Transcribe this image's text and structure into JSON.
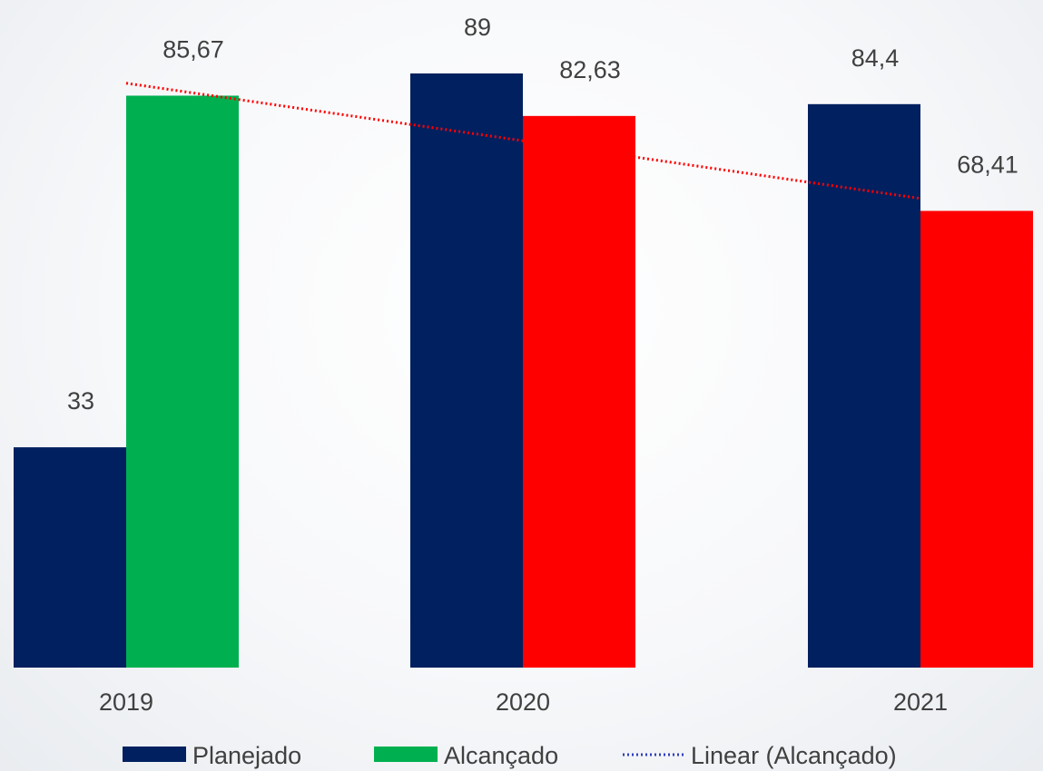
{
  "chart_data": {
    "type": "bar",
    "categories": [
      "2019",
      "2020",
      "2021"
    ],
    "series": [
      {
        "name": "Planejado",
        "values": [
          33,
          89,
          84.4
        ],
        "labels": [
          "33",
          "89",
          "84,4"
        ],
        "color": "#002060"
      },
      {
        "name": "Alcançado",
        "values": [
          85.67,
          82.63,
          68.41
        ],
        "labels": [
          "85,67",
          "82,63",
          "68,41"
        ],
        "colors": [
          "#00B050",
          "#FF0000",
          "#FF0000"
        ],
        "legend_color": "#00B050"
      }
    ],
    "trendline": {
      "name": "Linear (Alcançado)",
      "type": "linear",
      "series": "Alcançado",
      "color": "#FF0000",
      "legend_color": "#3040C0"
    },
    "ylim": [
      0,
      100
    ],
    "grid": false,
    "legend_position": "bottom"
  }
}
